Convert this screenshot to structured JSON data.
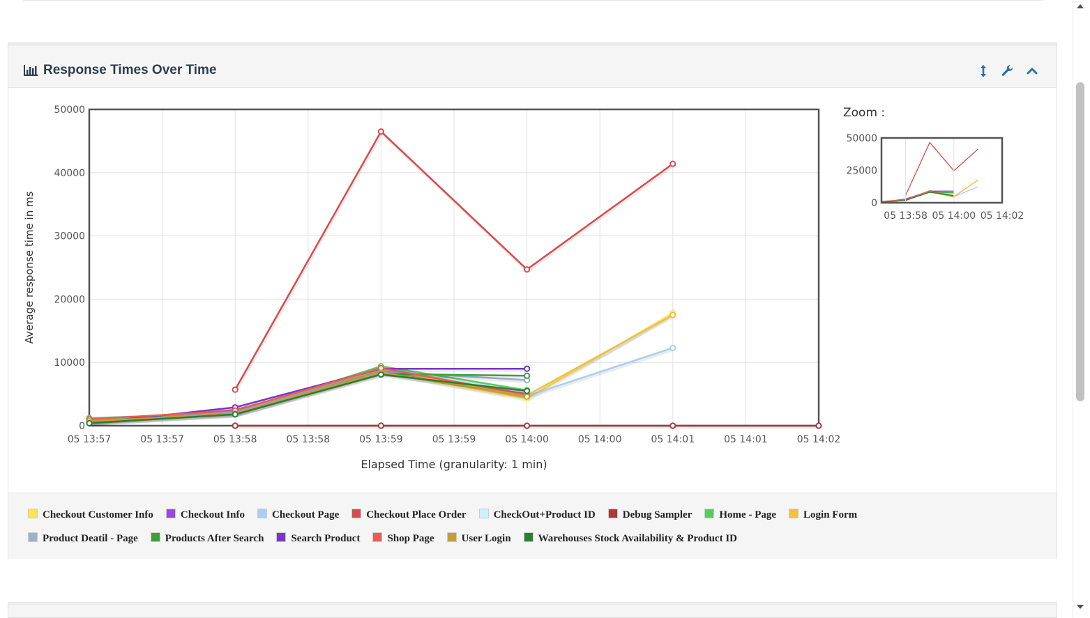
{
  "panel": {
    "title": "Response Times Over Time",
    "title_icon": "bar-chart-icon",
    "tools": [
      "resize-vertical-icon",
      "wrench-icon",
      "chevron-up-icon"
    ]
  },
  "zoom": {
    "label": "Zoom :",
    "y_ticks": [
      "50000",
      "25000",
      "0"
    ],
    "x_ticks": [
      "05 13:58",
      "05 14:00",
      "05 14:02"
    ]
  },
  "chart_data": {
    "type": "line",
    "title": "",
    "xlabel": "Elapsed Time (granularity: 1 min)",
    "ylabel": "Average response time in ms",
    "ylim": [
      0,
      50000
    ],
    "y_ticks": [
      "0",
      "10000",
      "20000",
      "30000",
      "40000",
      "50000"
    ],
    "x_tick_labels": [
      "05 13:57",
      "05 13:57",
      "05 13:58",
      "05 13:58",
      "05 13:59",
      "05 13:59",
      "05 14:00",
      "05 14:00",
      "05 14:01",
      "05 14:01",
      "05 14:02"
    ],
    "x_minutes": [
      0,
      1,
      2,
      3,
      4,
      5
    ],
    "grid": true,
    "legend_position": "bottom",
    "series": [
      {
        "name": "Checkout Customer Info",
        "color": "#ffe44d",
        "points": [
          [
            0,
            500
          ],
          [
            1,
            1800
          ],
          [
            2,
            8500
          ],
          [
            3,
            4300
          ],
          [
            4,
            17800
          ]
        ]
      },
      {
        "name": "Checkout Info",
        "color": "#9b47e6",
        "points": [
          [
            0,
            600
          ],
          [
            1,
            2500
          ],
          [
            2,
            8700
          ],
          [
            3,
            5000
          ]
        ]
      },
      {
        "name": "Checkout Page",
        "color": "#a9cff0",
        "points": [
          [
            0,
            900
          ],
          [
            1,
            2300
          ],
          [
            2,
            9300
          ],
          [
            3,
            4700
          ],
          [
            4,
            12300
          ]
        ]
      },
      {
        "name": "Checkout Place Order",
        "color": "#d64c4c",
        "points": [
          [
            1,
            5700
          ],
          [
            2,
            46500
          ],
          [
            3,
            24700
          ],
          [
            4,
            41400
          ]
        ]
      },
      {
        "name": "CheckOut+Product ID",
        "color": "#ccf3fb",
        "points": [
          [
            2,
            9000
          ],
          [
            3,
            5300
          ]
        ]
      },
      {
        "name": "Debug Sampler",
        "color": "#a83a3a",
        "points": [
          [
            1,
            0
          ],
          [
            2,
            0
          ],
          [
            3,
            0
          ],
          [
            4,
            0
          ],
          [
            5,
            0
          ]
        ]
      },
      {
        "name": "Home - Page",
        "color": "#56cc5f",
        "points": [
          [
            0,
            1200
          ],
          [
            1,
            2000
          ],
          [
            2,
            9400
          ],
          [
            3,
            5600
          ]
        ]
      },
      {
        "name": "Login Form",
        "color": "#f0c040",
        "points": [
          [
            0,
            800
          ],
          [
            1,
            2200
          ],
          [
            2,
            8800
          ],
          [
            3,
            4800
          ],
          [
            4,
            17500
          ]
        ]
      },
      {
        "name": "Product Deatil - Page",
        "color": "#9cb2cc",
        "points": [
          [
            0,
            700
          ],
          [
            1,
            2100
          ],
          [
            2,
            8600
          ],
          [
            3,
            7200
          ]
        ]
      },
      {
        "name": "Products After Search",
        "color": "#3e9e3e",
        "points": [
          [
            0,
            500
          ],
          [
            1,
            1800
          ],
          [
            2,
            8200
          ],
          [
            3,
            7900
          ]
        ]
      },
      {
        "name": "Search Product",
        "color": "#7b36c8",
        "points": [
          [
            0,
            400
          ],
          [
            1,
            2900
          ],
          [
            2,
            9000
          ],
          [
            3,
            9000
          ]
        ]
      },
      {
        "name": "Shop Page",
        "color": "#ec5a5a",
        "points": [
          [
            0,
            1000
          ],
          [
            1,
            2400
          ],
          [
            2,
            9100
          ],
          [
            3,
            4900
          ]
        ]
      },
      {
        "name": "User Login",
        "color": "#c4a030",
        "points": [
          [
            0,
            700
          ],
          [
            1,
            1900
          ],
          [
            2,
            8400
          ],
          [
            3,
            4600
          ]
        ]
      },
      {
        "name": "Warehouses Stock Availability & Product ID",
        "color": "#2e7d32",
        "points": [
          [
            0,
            400
          ],
          [
            1,
            1800
          ],
          [
            2,
            8100
          ],
          [
            3,
            5500
          ]
        ]
      }
    ]
  }
}
